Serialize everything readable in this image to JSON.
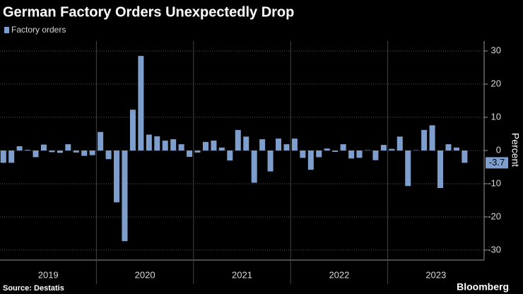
{
  "chart_data": {
    "type": "bar",
    "title": "German Factory Orders Unexpectedly Drop",
    "y_axis_label": "Percent",
    "source": "Source: Destatis",
    "brand": "Bloomberg",
    "years": [
      "2019",
      "2020",
      "2021",
      "2022",
      "2023"
    ],
    "series": [
      {
        "name": "Factory orders",
        "color": "#7e9fce",
        "values": [
          -3.7,
          -3.7,
          1.3,
          0.2,
          -2.0,
          1.8,
          -0.5,
          -0.7,
          1.9,
          -0.6,
          -1.6,
          -1.4,
          5.6,
          -2.6,
          -15.6,
          -27.3,
          12.3,
          28.5,
          4.8,
          4.3,
          3.0,
          3.4,
          1.9,
          -1.9,
          -0.6,
          2.6,
          3.0,
          0.9,
          -3.0,
          6.2,
          4.2,
          -9.7,
          3.4,
          -6.3,
          3.6,
          1.9,
          3.6,
          -2.2,
          -5.8,
          -2.0,
          0.6,
          -0.4,
          1.9,
          -2.4,
          -2.2,
          0.1,
          -2.9,
          1.7,
          0.5,
          4.2,
          -10.7,
          0.1,
          6.2,
          7.6,
          -11.3,
          1.9,
          0.9,
          -3.7
        ]
      }
    ],
    "ylim": [
      -33,
      33
    ],
    "yticks": [
      -30,
      -20,
      -10,
      0,
      10,
      20,
      30
    ],
    "grid": true
  }
}
